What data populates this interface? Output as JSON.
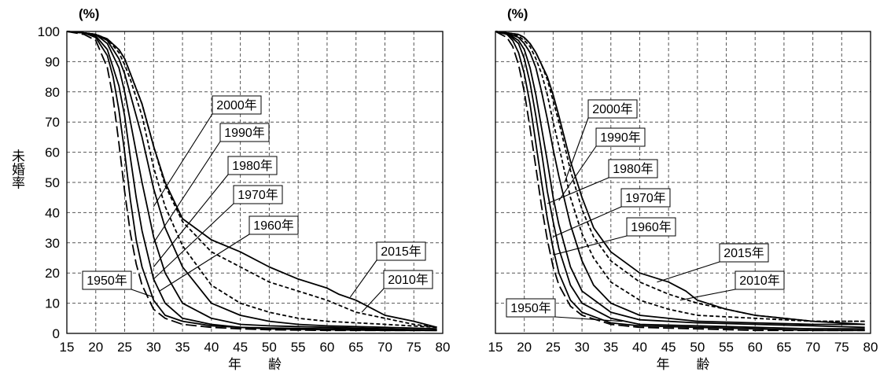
{
  "ylabel": "未婚率",
  "unit": "(%)",
  "xlabel": "年　　齢",
  "chart_data": [
    {
      "type": "line",
      "xlabel": "年　　齢",
      "ylabel": "未婚率",
      "unit": "(%)",
      "x_ticks": [
        15,
        20,
        25,
        30,
        35,
        40,
        45,
        50,
        55,
        60,
        65,
        70,
        75,
        80
      ],
      "y_ticks": [
        0,
        10,
        20,
        30,
        40,
        50,
        60,
        70,
        80,
        90,
        100
      ],
      "xlim": [
        15,
        80
      ],
      "ylim": [
        0,
        100
      ],
      "grid": true,
      "series": [
        {
          "name": "1950年",
          "dash": "long",
          "x": [
            15,
            18,
            20,
            22,
            23,
            24,
            25,
            26,
            27,
            28,
            30,
            32,
            35,
            40,
            45,
            50,
            60,
            70,
            79
          ],
          "y": [
            100,
            99,
            97,
            88,
            78,
            63,
            47,
            33,
            23,
            16,
            8,
            5,
            3,
            2,
            1.5,
            1.2,
            1,
            1,
            1
          ]
        },
        {
          "name": "1960年",
          "dash": "solid",
          "x": [
            15,
            18,
            20,
            22,
            23,
            24,
            25,
            26,
            27,
            28,
            30,
            32,
            35,
            40,
            45,
            50,
            60,
            70,
            79
          ],
          "y": [
            100,
            99.5,
            98,
            92,
            85,
            74,
            60,
            44,
            31,
            22,
            11,
            6,
            4,
            2.5,
            2,
            1.5,
            1.2,
            1,
            1
          ]
        },
        {
          "name": "1970年",
          "dash": "solid",
          "x": [
            15,
            18,
            20,
            22,
            24,
            25,
            26,
            27,
            28,
            30,
            32,
            35,
            40,
            45,
            50,
            60,
            70,
            79
          ],
          "y": [
            100,
            99.5,
            98.5,
            94,
            82,
            72,
            58,
            45,
            34,
            18,
            10,
            5,
            3,
            2,
            1.8,
            1.5,
            1.2,
            1
          ]
        },
        {
          "name": "1980年",
          "dash": "solid",
          "x": [
            15,
            18,
            20,
            22,
            24,
            25,
            26,
            27,
            28,
            30,
            32,
            35,
            40,
            45,
            50,
            60,
            70,
            79
          ],
          "y": [
            100,
            99.5,
            99,
            96,
            88,
            80,
            70,
            60,
            50,
            32,
            20,
            10,
            5,
            3,
            2.5,
            2,
            1.5,
            1
          ]
        },
        {
          "name": "1990年",
          "dash": "solid",
          "x": [
            15,
            18,
            20,
            22,
            24,
            25,
            26,
            28,
            30,
            32,
            35,
            40,
            45,
            50,
            55,
            60,
            70,
            79
          ],
          "y": [
            100,
            99.5,
            99,
            97,
            91,
            86,
            79,
            65,
            48,
            35,
            22,
            10,
            6,
            4,
            3,
            2.5,
            2,
            1.5
          ]
        },
        {
          "name": "2000年",
          "dash": "short",
          "x": [
            15,
            18,
            20,
            22,
            24,
            25,
            26,
            28,
            30,
            32,
            35,
            40,
            45,
            50,
            55,
            60,
            70,
            79
          ],
          "y": [
            100,
            99.5,
            99,
            97.5,
            93,
            89,
            84,
            72,
            55,
            42,
            29,
            16,
            10,
            7,
            5,
            4,
            3,
            2
          ]
        },
        {
          "name": "2010年",
          "dash": "short",
          "x": [
            15,
            18,
            20,
            22,
            24,
            25,
            26,
            28,
            30,
            32,
            35,
            40,
            45,
            50,
            55,
            60,
            65,
            70,
            75,
            79
          ],
          "y": [
            100,
            99.5,
            99,
            97.5,
            94,
            91,
            86,
            76,
            62,
            49,
            37,
            27,
            22,
            17,
            14,
            11,
            7,
            5,
            3,
            2
          ]
        },
        {
          "name": "2015年",
          "dash": "solid",
          "x": [
            15,
            18,
            20,
            22,
            24,
            25,
            26,
            28,
            30,
            32,
            35,
            40,
            45,
            50,
            55,
            60,
            62,
            65,
            67,
            70,
            75,
            79
          ],
          "y": [
            100,
            99.5,
            99,
            97.5,
            94,
            91,
            86,
            76,
            62,
            50,
            38,
            31,
            27,
            22,
            18,
            15,
            13,
            11,
            9,
            6,
            4,
            2
          ]
        }
      ],
      "annotations": [
        "2000年",
        "1990年",
        "1980年",
        "1970年",
        "1960年",
        "1950年",
        "2015年",
        "2010年"
      ]
    },
    {
      "type": "line",
      "xlabel": "年　　齢",
      "unit": "(%)",
      "x_ticks": [
        15,
        20,
        25,
        30,
        35,
        40,
        45,
        50,
        55,
        60,
        65,
        70,
        75,
        80
      ],
      "y_ticks": [
        0,
        10,
        20,
        30,
        40,
        50,
        60,
        70,
        80,
        90,
        100
      ],
      "xlim": [
        15,
        80
      ],
      "ylim": [
        0,
        100
      ],
      "grid": true,
      "series": [
        {
          "name": "1950年",
          "dash": "long",
          "x": [
            15,
            17,
            18,
            19,
            20,
            21,
            22,
            23,
            24,
            25,
            26,
            28,
            30,
            35,
            40,
            50,
            60,
            70,
            79
          ],
          "y": [
            100,
            98,
            95,
            89,
            80,
            68,
            55,
            42,
            31,
            22,
            16,
            9,
            6,
            3,
            2,
            1.5,
            1,
            1,
            1
          ]
        },
        {
          "name": "1960年",
          "dash": "solid",
          "x": [
            15,
            17,
            18,
            19,
            20,
            21,
            22,
            23,
            24,
            25,
            26,
            28,
            30,
            35,
            40,
            50,
            60,
            70,
            79
          ],
          "y": [
            100,
            99,
            97,
            93,
            86,
            76,
            63,
            50,
            38,
            28,
            20,
            11,
            7,
            3.5,
            2.5,
            2,
            1.5,
            1,
            1
          ]
        },
        {
          "name": "1970年",
          "dash": "solid",
          "x": [
            15,
            17,
            19,
            20,
            21,
            22,
            23,
            24,
            25,
            26,
            28,
            30,
            35,
            40,
            50,
            60,
            70,
            79
          ],
          "y": [
            100,
            99.5,
            96,
            91,
            83,
            72,
            60,
            47,
            37,
            28,
            16,
            10,
            5,
            3,
            2.5,
            2,
            1.5,
            1.5
          ]
        },
        {
          "name": "1980年",
          "dash": "solid",
          "x": [
            15,
            17,
            19,
            20,
            21,
            22,
            23,
            24,
            25,
            26,
            28,
            30,
            35,
            40,
            50,
            60,
            70,
            79
          ],
          "y": [
            100,
            99.5,
            97,
            94,
            88,
            79,
            68,
            57,
            45,
            36,
            22,
            14,
            7,
            4.5,
            3.5,
            3,
            2.5,
            2
          ]
        },
        {
          "name": "1990年",
          "dash": "solid",
          "x": [
            15,
            17,
            19,
            20,
            21,
            22,
            23,
            24,
            25,
            26,
            28,
            30,
            32,
            35,
            40,
            50,
            60,
            70,
            79
          ],
          "y": [
            100,
            99.5,
            98,
            96,
            93,
            88,
            80,
            71,
            61,
            52,
            36,
            24,
            16,
            10,
            6,
            4,
            3.5,
            3,
            3
          ]
        },
        {
          "name": "2000年",
          "dash": "short",
          "x": [
            15,
            17,
            19,
            20,
            21,
            22,
            23,
            24,
            25,
            26,
            28,
            30,
            32,
            35,
            40,
            45,
            50,
            60,
            70,
            79
          ],
          "y": [
            100,
            99.5,
            98.5,
            97,
            95,
            91,
            86,
            79,
            70,
            62,
            45,
            33,
            25,
            17,
            11,
            8,
            6,
            5,
            4,
            4
          ]
        },
        {
          "name": "2010年",
          "dash": "short",
          "x": [
            15,
            17,
            19,
            20,
            21,
            22,
            23,
            24,
            25,
            26,
            28,
            30,
            32,
            35,
            40,
            45,
            50,
            55,
            60,
            65,
            70,
            79
          ],
          "y": [
            100,
            99.5,
            99,
            98,
            96,
            93,
            89,
            84,
            77,
            70,
            54,
            41,
            32,
            24,
            17,
            13,
            10,
            8,
            6,
            5,
            4,
            4
          ]
        },
        {
          "name": "2015年",
          "dash": "solid",
          "x": [
            15,
            17,
            19,
            20,
            21,
            22,
            23,
            24,
            25,
            26,
            28,
            30,
            32,
            35,
            40,
            45,
            48,
            50,
            55,
            60,
            65,
            70,
            79
          ],
          "y": [
            100,
            99.5,
            99,
            98,
            96,
            93,
            89,
            85,
            79,
            72,
            57,
            45,
            35,
            27,
            20,
            17,
            14,
            11,
            8,
            6,
            5,
            4,
            3
          ]
        }
      ],
      "annotations": [
        "2000年",
        "1990年",
        "1980年",
        "1970年",
        "1960年",
        "2015年",
        "2010年",
        "1950年"
      ]
    }
  ]
}
